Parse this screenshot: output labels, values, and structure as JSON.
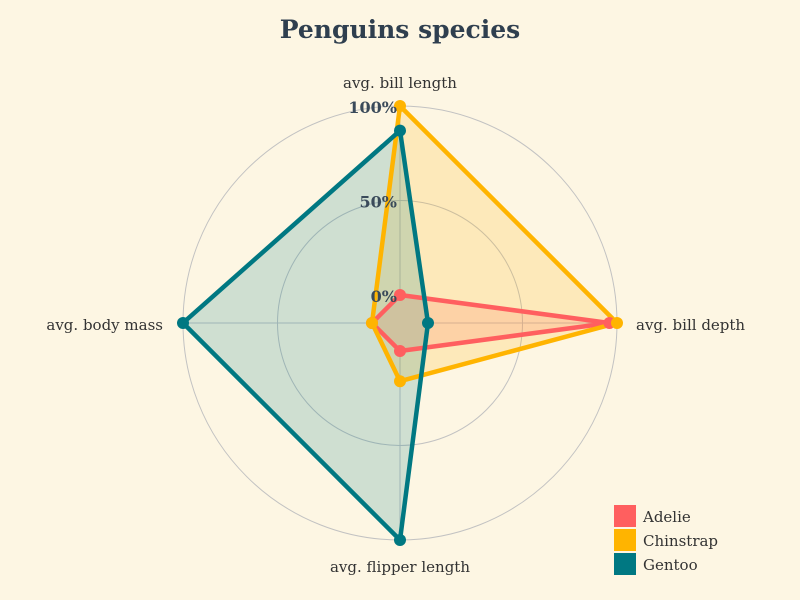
{
  "chart_data": {
    "type": "radar",
    "title": "Penguins species",
    "axes": [
      "avg. bill length",
      "avg. bill depth",
      "avg. flipper length",
      "avg. body mass"
    ],
    "rlim": [
      0,
      100
    ],
    "ticks": [
      "0%",
      "50%",
      "100%"
    ],
    "grid": true,
    "legend_position": "bottom-right",
    "series": [
      {
        "name": "Adelie",
        "color": "#ff5f5f",
        "values": [
          0,
          96,
          0,
          0
        ]
      },
      {
        "name": "Chinstrap",
        "color": "#ffb400",
        "values": [
          100,
          100,
          16,
          0
        ]
      },
      {
        "name": "Gentoo",
        "color": "#007882",
        "values": [
          87,
          0,
          100,
          100
        ]
      }
    ]
  }
}
